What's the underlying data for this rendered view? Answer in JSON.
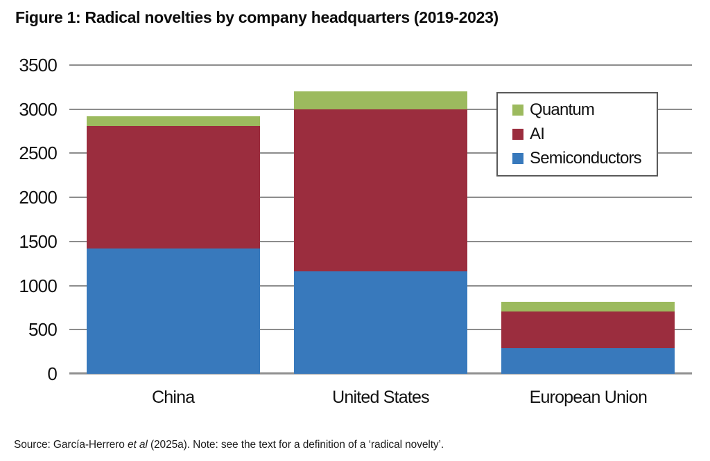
{
  "title": "Figure 1: Radical novelties by company headquarters (2019-2023)",
  "source": {
    "prefix": "Source: García-Herrero ",
    "italic": "et al",
    "suffix": " (2025a). Note: see the text for a definition of a ‘radical novelty’."
  },
  "chart_data": {
    "type": "bar",
    "stacked": true,
    "title": "Figure 1: Radical novelties by company headquarters (2019-2023)",
    "categories": [
      "China",
      "United States",
      "European Union"
    ],
    "series": [
      {
        "name": "Semiconductors",
        "color": "#3879BC",
        "values": [
          1420,
          1160,
          290
        ]
      },
      {
        "name": "AI",
        "color": "#9B2D3E",
        "values": [
          1390,
          1840,
          415
        ]
      },
      {
        "name": "Quantum",
        "color": "#9CBA5E",
        "values": [
          110,
          200,
          110
        ]
      }
    ],
    "stack_totals": [
      2920,
      3200,
      815
    ],
    "xlabel": "",
    "ylabel": "",
    "ylim": [
      0,
      3500
    ],
    "yticks": [
      0,
      500,
      1000,
      1500,
      2000,
      2500,
      3000,
      3500
    ],
    "grid": "horizontal",
    "legend": {
      "position": "inside-top-right",
      "order": [
        "Quantum",
        "AI",
        "Semiconductors"
      ]
    },
    "colors": {
      "gridline": "#8c8c8c",
      "axis_text": "#111111",
      "background": "#ffffff"
    }
  }
}
